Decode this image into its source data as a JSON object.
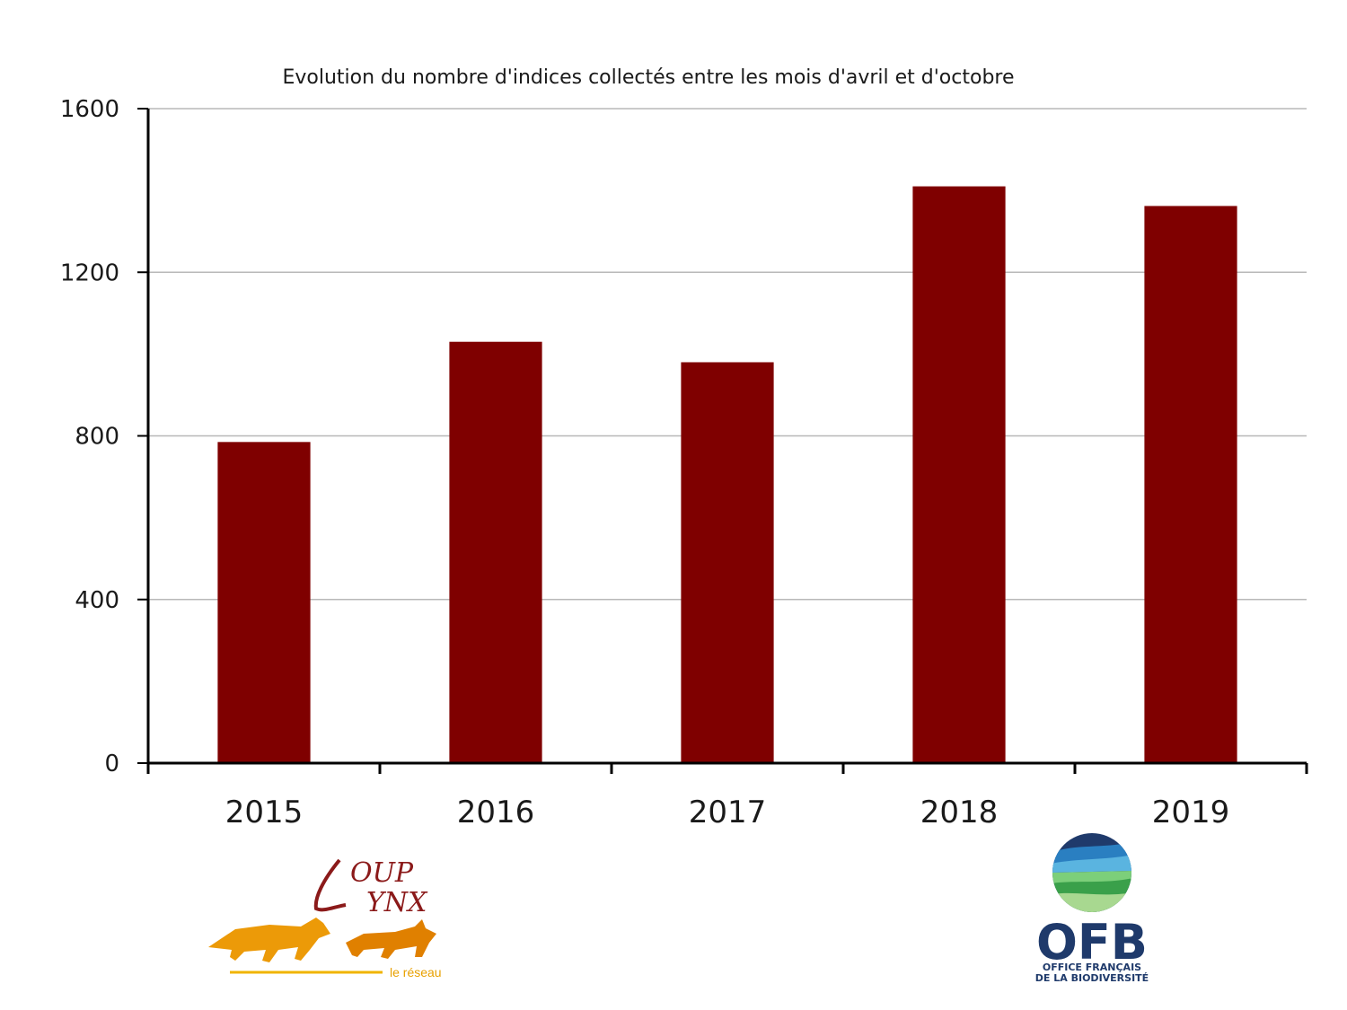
{
  "chart_data": {
    "type": "bar",
    "title": "Evolution du nombre d'indices collectés entre les mois d'avril et d'octobre",
    "categories": [
      "2015",
      "2016",
      "2017",
      "2018",
      "2019"
    ],
    "values": [
      785,
      1030,
      980,
      1410,
      1362
    ],
    "ylim": [
      0,
      1600
    ],
    "yticks": [
      0,
      400,
      800,
      1200,
      1600
    ],
    "xlabel": "",
    "ylabel": "",
    "grid": true,
    "bar_color": "#7f0000"
  },
  "logos": {
    "loup_lynx": {
      "word1": "OUP",
      "word2": "YNX",
      "tagline": "le réseau",
      "color_text": "#8b1a1a",
      "color_animals": "#e89000"
    },
    "ofb": {
      "acronym": "OFB",
      "line1": "OFFICE FRANÇAIS",
      "line2": "DE LA BIODIVERSITÉ",
      "color": "#1f3a6b"
    }
  }
}
